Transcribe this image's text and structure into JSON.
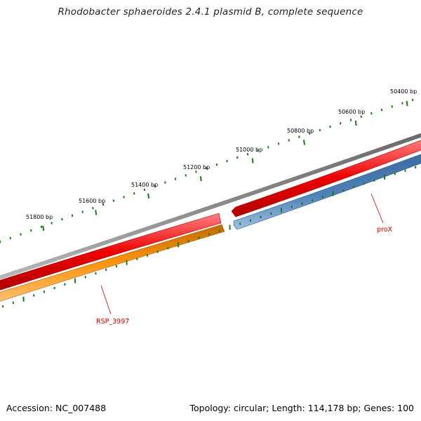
{
  "title": "Rhodobacter sphaeroides 2.4.1 plasmid B, complete sequence",
  "footer": {
    "accession": "Accession: NC_007488",
    "summary": "Topology: circular; Length: 114,178 bp; Genes: 100"
  },
  "colors": {
    "backbone": "#808080",
    "forward_cds": "#e00000",
    "reverse_cds_blue": "#4a7db3",
    "reverse_cds_orange": "#ff9000",
    "tick": "#1a7a1a",
    "gene_label": "#cc0000"
  },
  "ticks": [
    {
      "label": "50400 bp"
    },
    {
      "label": "50600 bp"
    },
    {
      "label": "50800 bp"
    },
    {
      "label": "51000 bp"
    },
    {
      "label": "51200 bp"
    },
    {
      "label": "51400 bp"
    },
    {
      "label": "51600 bp"
    },
    {
      "label": "51800 bp"
    }
  ],
  "genes": [
    {
      "name": "proX",
      "strand": "reverse",
      "color": "blue"
    },
    {
      "name": "RSP_3997",
      "strand": "reverse",
      "color": "orange"
    }
  ]
}
